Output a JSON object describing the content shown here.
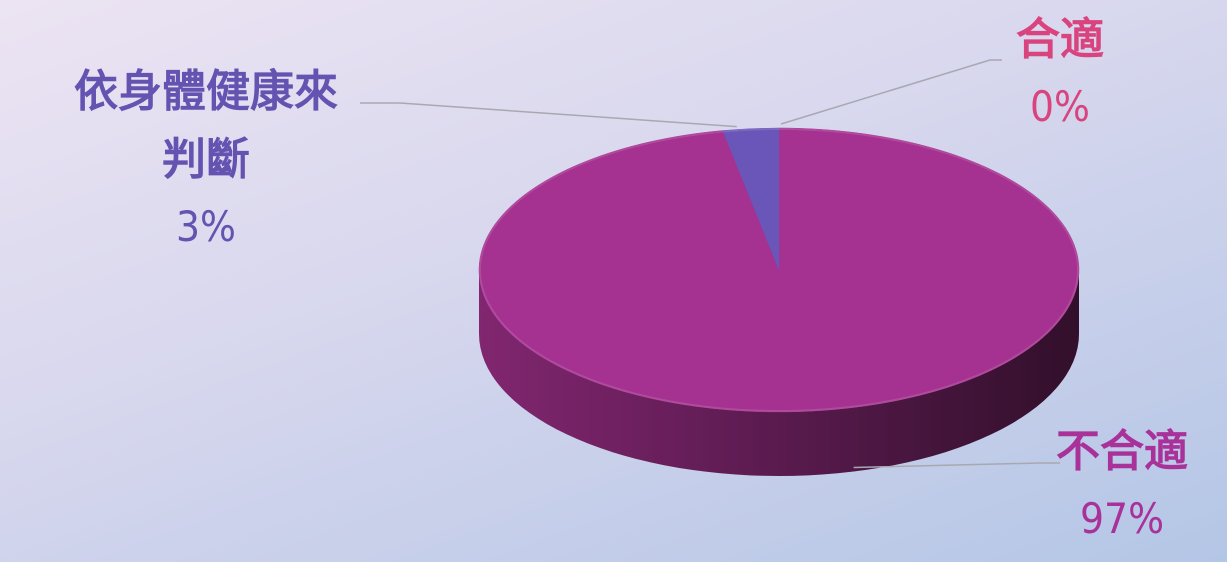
{
  "chart_data": {
    "type": "pie",
    "style": "3d",
    "slices": [
      {
        "label": "合適",
        "line2": "",
        "value": 0,
        "value_label": "0%",
        "color": "#d9447f"
      },
      {
        "label": "不合適",
        "line2": "",
        "value": 97,
        "value_label": "97%",
        "color": "#a53190"
      },
      {
        "label": "依身體健康來",
        "line2": "判斷",
        "value": 3,
        "value_label": "3%",
        "color": "#6a55b8"
      }
    ],
    "label_colors": [
      "#d9447f",
      "#a8329a",
      "#6453b0"
    ]
  }
}
